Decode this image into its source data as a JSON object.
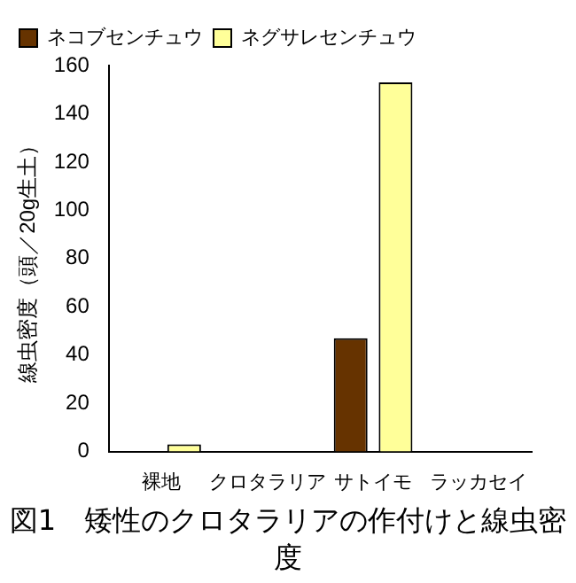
{
  "chart_data": {
    "type": "bar",
    "title": "図1　矮性のクロタラリアの作付けと線虫密度",
    "ylabel": "線虫密度（頭／20g生土）",
    "categories": [
      "裸地",
      "クロタラリア",
      "サトイモ",
      "ラッカセイ"
    ],
    "series": [
      {
        "name": "ネコブセンチュウ",
        "color": "#663300",
        "values": [
          0,
          0,
          47,
          0
        ]
      },
      {
        "name": "ネグサレセンチュウ",
        "color": "#ffff99",
        "values": [
          3,
          0,
          153,
          0
        ]
      }
    ],
    "ylim": [
      0,
      160
    ],
    "yticks": [
      0,
      20,
      40,
      60,
      80,
      100,
      120,
      140,
      160
    ],
    "grid": false,
    "legend": "top left"
  }
}
